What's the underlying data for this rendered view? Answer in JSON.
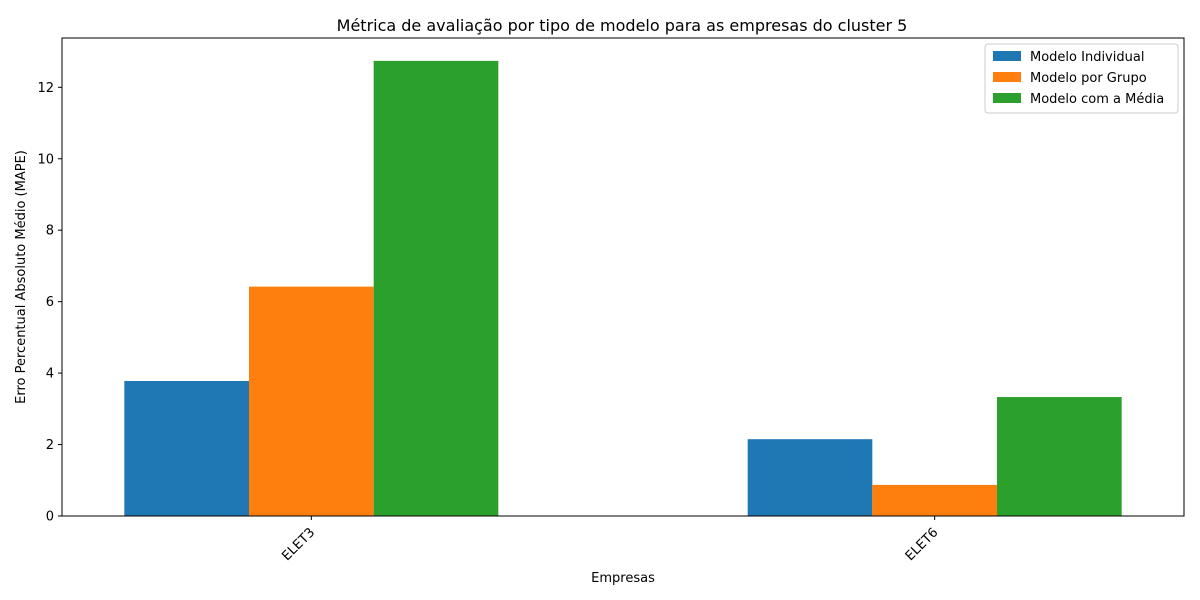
{
  "chart_data": {
    "type": "bar",
    "title": "Métrica de avaliação por tipo de modelo para as empresas do cluster 5",
    "xlabel": "Empresas",
    "ylabel": "Erro Percentual Absoluto Médio (MAPE)",
    "categories": [
      "ELET3",
      "ELET6"
    ],
    "series": [
      {
        "name": "Modelo Individual",
        "color": "#1f77b4",
        "values": [
          3.78,
          2.15
        ]
      },
      {
        "name": "Modelo por Grupo",
        "color": "#ff7f0e",
        "values": [
          6.42,
          0.87
        ]
      },
      {
        "name": "Modelo com a Média",
        "color": "#2ca02c",
        "values": [
          12.74,
          3.33
        ]
      }
    ],
    "ylim": [
      0,
      13.38
    ],
    "yticks": [
      0,
      2,
      4,
      6,
      8,
      10,
      12
    ],
    "legend_position": "top-right",
    "grid": false
  }
}
